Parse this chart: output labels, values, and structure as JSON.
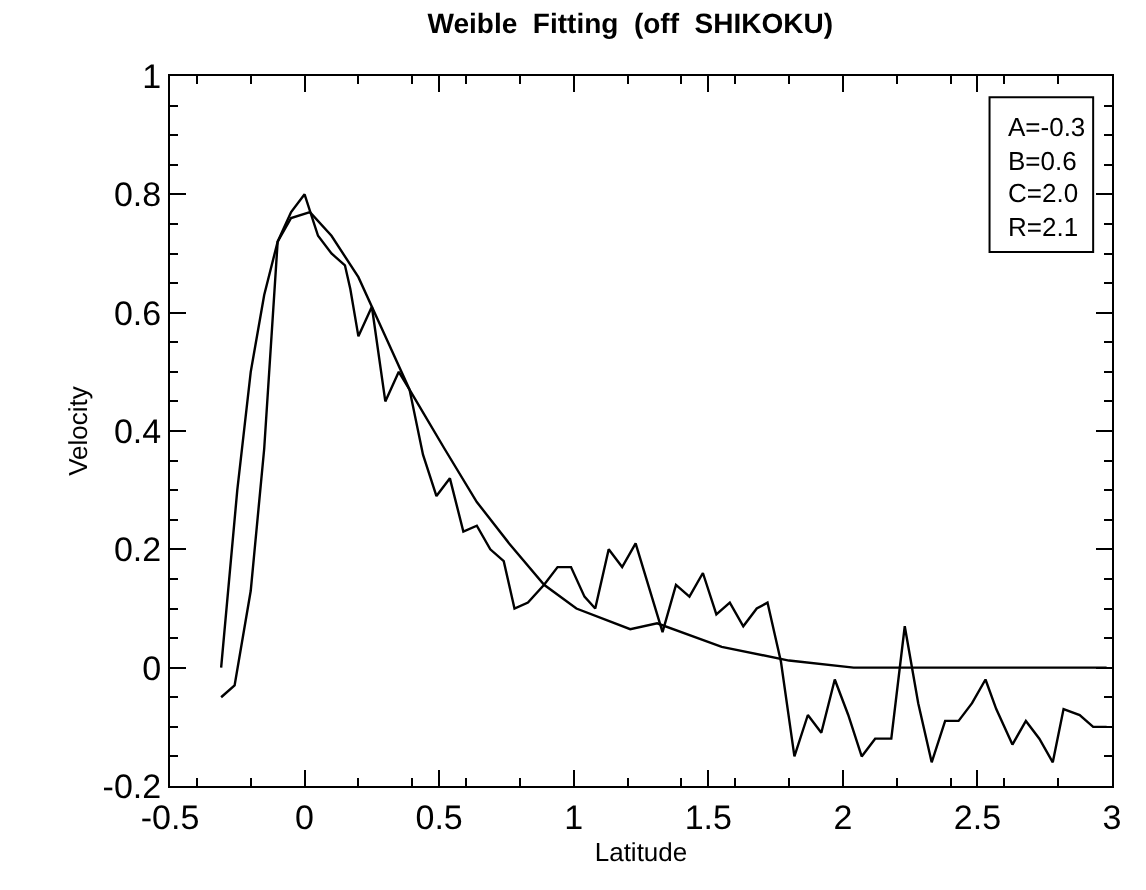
{
  "chart_data": {
    "type": "line",
    "title": "Weible  Fitting  (off  SHIKOKU)",
    "xlabel": "Latitude",
    "ylabel": "Velocity",
    "xlim": [
      -0.5,
      3
    ],
    "xticks": [
      -0.5,
      0,
      0.5,
      1,
      1.5,
      2,
      2.5,
      3
    ],
    "ylim": [
      -0.2,
      1
    ],
    "yticks": [
      -0.2,
      0,
      0.2,
      0.4,
      0.6,
      0.8,
      1
    ],
    "legend": false,
    "marker": "none",
    "line_style": "solid",
    "annotations": [
      "A=-0.3",
      "B=0.6",
      "C=2.0",
      "R=2.1"
    ],
    "series": [
      {
        "color": "#000000",
        "x": [
          -0.31,
          -0.26,
          -0.2,
          -0.15,
          -0.1,
          -0.05,
          0,
          0.05,
          0.1,
          0.15,
          0.17,
          0.2,
          0.25,
          0.3,
          0.35,
          0.39,
          0.44,
          0.49,
          0.54,
          0.59,
          0.64,
          0.69,
          0.74,
          0.78,
          0.83,
          0.89,
          0.94,
          0.99,
          1.04,
          1.08,
          1.13,
          1.18,
          1.23,
          1.33,
          1.38,
          1.43,
          1.48,
          1.53,
          1.58,
          1.63,
          1.68,
          1.72,
          1.77,
          1.82,
          1.87,
          1.92,
          1.97,
          2.02,
          2.07,
          2.12,
          2.18,
          2.23,
          2.28,
          2.33,
          2.38,
          2.43,
          2.48,
          2.53,
          2.57,
          2.63,
          2.68,
          2.73,
          2.78,
          2.82,
          2.88,
          2.93,
          2.98
        ],
        "values": [
          -0.05,
          -0.03,
          0.13,
          0.37,
          0.72,
          0.77,
          0.8,
          0.73,
          0.7,
          0.68,
          0.64,
          0.56,
          0.61,
          0.45,
          0.5,
          0.47,
          0.36,
          0.29,
          0.32,
          0.23,
          0.24,
          0.2,
          0.18,
          0.1,
          0.11,
          0.14,
          0.17,
          0.17,
          0.12,
          0.1,
          0.2,
          0.17,
          0.21,
          0.06,
          0.14,
          0.12,
          0.16,
          0.09,
          0.11,
          0.07,
          0.1,
          0.11,
          0.01,
          -0.15,
          -0.08,
          -0.11,
          -0.02,
          -0.08,
          -0.15,
          -0.12,
          -0.12,
          0.07,
          -0.06,
          -0.16,
          -0.09,
          -0.09,
          -0.06,
          -0.02,
          -0.07,
          -0.13,
          -0.09,
          -0.12,
          -0.16,
          -0.07,
          -0.08,
          -0.1,
          -0.1
        ]
      },
      {
        "color": "#000000",
        "x": [
          -0.31,
          -0.25,
          -0.2,
          -0.15,
          -0.1,
          -0.05,
          0.02,
          0.1,
          0.2,
          0.3,
          0.39,
          0.52,
          0.64,
          0.76,
          0.89,
          1.01,
          1.21,
          1.31,
          1.55,
          1.8,
          2.04,
          2.29,
          2.98
        ],
        "values": [
          0,
          0.3,
          0.5,
          0.63,
          0.72,
          0.76,
          0.77,
          0.73,
          0.66,
          0.56,
          0.47,
          0.37,
          0.28,
          0.21,
          0.14,
          0.1,
          0.065,
          0.075,
          0.035,
          0.012,
          0,
          0,
          0
        ]
      }
    ]
  }
}
